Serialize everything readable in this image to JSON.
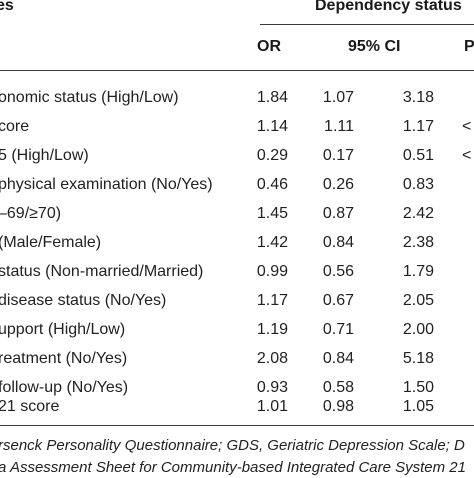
{
  "table": {
    "header": {
      "variables": "es",
      "group": "Dependency status",
      "col_or": "OR",
      "col_ci": "95% CI",
      "col_p": "P"
    },
    "rows": [
      {
        "variable": "onomic status (High/Low)",
        "or": "1.84",
        "ci_low": "1.07",
        "ci_high": "3.18",
        "p": ""
      },
      {
        "variable": "core",
        "or": "1.14",
        "ci_low": "1.11",
        "ci_high": "1.17",
        "p": "<"
      },
      {
        "variable": "5 (High/Low)",
        "or": "0.29",
        "ci_low": "0.17",
        "ci_high": "0.51",
        "p": "<"
      },
      {
        "variable": "physical examination (No/Yes)",
        "or": "0.46",
        "ci_low": "0.26",
        "ci_high": "0.83",
        "p": ""
      },
      {
        "variable": "–69/≥70)",
        "or": "1.45",
        "ci_low": "0.87",
        "ci_high": "2.42",
        "p": ""
      },
      {
        "variable": "(Male/Female)",
        "or": "1.42",
        "ci_low": "0.84",
        "ci_high": "2.38",
        "p": ""
      },
      {
        "variable": "status (Non-married/Married)",
        "or": "0.99",
        "ci_low": "0.56",
        "ci_high": "1.79",
        "p": ""
      },
      {
        "variable": "disease status (No/Yes)",
        "or": "1.17",
        "ci_low": "0.67",
        "ci_high": "2.05",
        "p": ""
      },
      {
        "variable": "upport (High/Low)",
        "or": "1.19",
        "ci_low": "0.71",
        "ci_high": "2.00",
        "p": ""
      },
      {
        "variable": "reatment (No/Yes)",
        "or": "2.08",
        "ci_low": "0.84",
        "ci_high": "5.18",
        "p": ""
      },
      {
        "variable": "follow-up (No/Yes)",
        "or": "0.93",
        "ci_low": "0.58",
        "ci_high": "1.50",
        "p": ""
      },
      {
        "variable": "21 score",
        "or": "1.01",
        "ci_low": "0.98",
        "ci_high": "1.05",
        "p": ""
      }
    ],
    "footnote_line1": "rsenck Personality Questionnaire; GDS, Geriatric Depression Scale; D",
    "footnote_line2": "a Assessment Sheet for Community-based Integrated Care System 21"
  }
}
